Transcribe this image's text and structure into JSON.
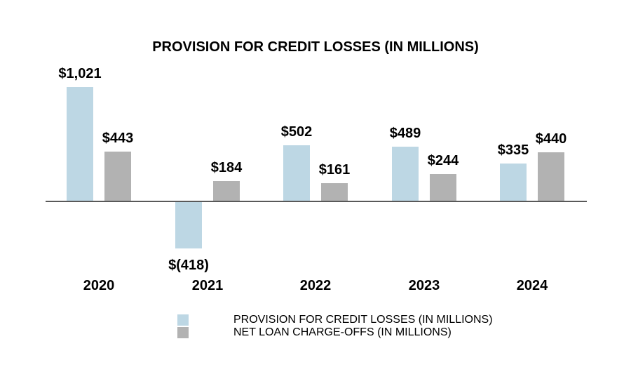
{
  "title": "PROVISION FOR CREDIT LOSSES (IN MILLIONS)",
  "colors": {
    "provision": "#BDD7E4",
    "chargeoffs": "#B2B2B2",
    "axis": "#595959",
    "text": "#000000",
    "background": "#FFFFFF"
  },
  "chart_data": {
    "type": "bar",
    "title": "PROVISION FOR CREDIT LOSSES (IN MILLIONS)",
    "categories": [
      "2020",
      "2021",
      "2022",
      "2023",
      "2024"
    ],
    "series": [
      {
        "name": "PROVISION FOR CREDIT LOSSES (IN MILLIONS)",
        "color_key": "provision",
        "values": [
          1021,
          -418,
          502,
          489,
          335
        ],
        "labels": [
          "$1,021",
          "$(418)",
          "$502",
          "$489",
          "$335"
        ]
      },
      {
        "name": "NET LOAN CHARGE-OFFS (IN MILLIONS)",
        "color_key": "chargeoffs",
        "values": [
          443,
          184,
          161,
          244,
          440
        ],
        "labels": [
          "$443",
          "$184",
          "$161",
          "$244",
          "$440"
        ]
      }
    ],
    "xlabel": "",
    "ylabel": "",
    "baseline": 0,
    "grid": false,
    "data_labels": true,
    "legend_position": "bottom"
  }
}
